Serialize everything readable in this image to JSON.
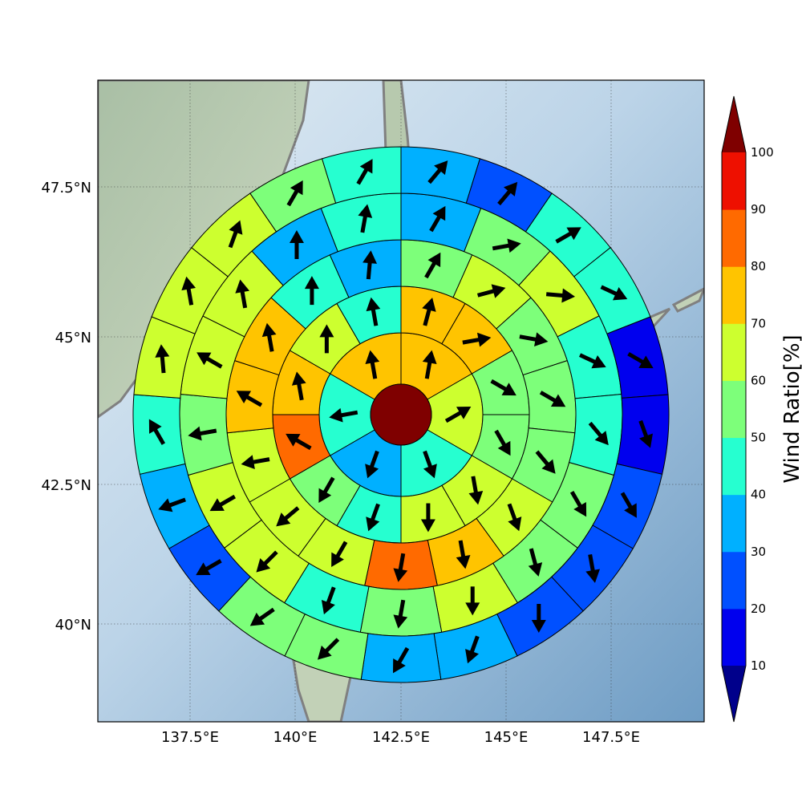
{
  "colors": {
    "under": "#00008b",
    "over": "#7f0000",
    "center": "#7f0000",
    "levels": [
      "#0000ee",
      "#0050ff",
      "#00b0ff",
      "#26ffd0",
      "#7dff7a",
      "#cdff2f",
      "#ffc400",
      "#ff6a00",
      "#ee1000"
    ]
  },
  "map": {
    "lat_labels": [
      "47.5°N",
      "45°N",
      "42.5°N",
      "40°N"
    ],
    "lon_labels": [
      "137.5°E",
      "140°E",
      "142.5°E",
      "145°E",
      "147.5°E"
    ]
  },
  "colorbar": {
    "label": "Wind Ratio[%]",
    "ticks": [
      "10",
      "20",
      "30",
      "40",
      "50",
      "60",
      "70",
      "80",
      "90",
      "100"
    ]
  },
  "chart_data": {
    "type": "polar-sector-map",
    "center": {
      "lon": 142.5,
      "lat": 43.6
    },
    "colorbar_levels": [
      10,
      20,
      30,
      40,
      50,
      60,
      70,
      80,
      90,
      100
    ],
    "ring_direction_note": "sectors listed clockwise starting from north (0°)",
    "center_value": 100,
    "rings": [
      {
        "ring": 1,
        "values": [
          70,
          60,
          40,
          30,
          40,
          70
        ]
      },
      {
        "ring": 2,
        "values": [
          70,
          70,
          50,
          50,
          60,
          60,
          40,
          50,
          80,
          70,
          60,
          45
        ]
      },
      {
        "ring": 3,
        "values": [
          50,
          60,
          50,
          50,
          50,
          60,
          70,
          80,
          60,
          60,
          60,
          70,
          70,
          45,
          30
        ]
      },
      {
        "ring": 4,
        "values": [
          30,
          50,
          60,
          40,
          40,
          50,
          50,
          60,
          50,
          40,
          60,
          60,
          50,
          60,
          60,
          30,
          40
        ]
      },
      {
        "ring": 5,
        "values": [
          30,
          20,
          40,
          40,
          10,
          10,
          20,
          20,
          20,
          30,
          30,
          50,
          50,
          20,
          30,
          40,
          60,
          60,
          60,
          50,
          40
        ]
      }
    ],
    "wind_direction_deg": {
      "ring1": [
        10,
        60,
        160,
        200,
        260,
        350
      ],
      "ring2": [
        15,
        80,
        120,
        150,
        170,
        180,
        200,
        210,
        300,
        350,
        0,
        350
      ],
      "ring3": [
        30,
        75,
        100,
        120,
        140,
        160,
        170,
        190,
        210,
        230,
        260,
        300,
        350,
        0,
        5
      ],
      "ring4": [
        30,
        80,
        95,
        115,
        140,
        150,
        165,
        180,
        190,
        200,
        225,
        240,
        260,
        300,
        350,
        0,
        10
      ],
      "ring5": [
        40,
        40,
        60,
        115,
        120,
        160,
        150,
        170,
        180,
        200,
        210,
        225,
        235,
        240,
        250,
        330,
        355,
        350,
        20,
        30,
        30
      ]
    }
  }
}
